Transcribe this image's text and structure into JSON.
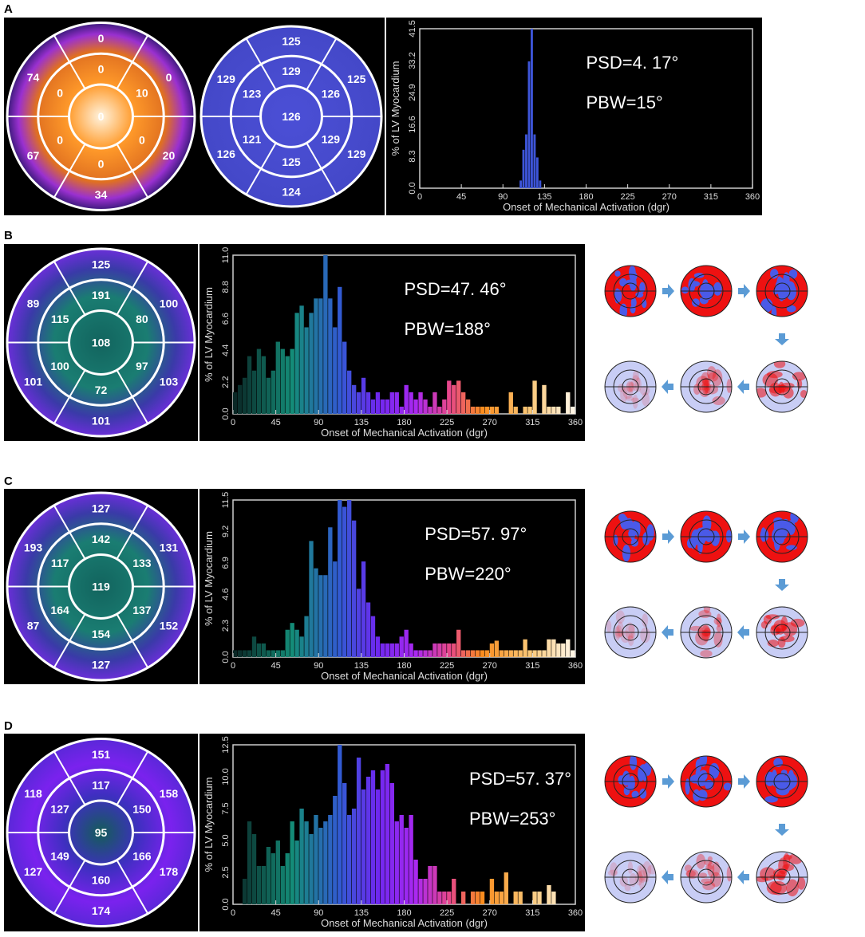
{
  "panels": [
    {
      "label": "A",
      "maps": [
        {
          "outer": [
            "0",
            "0",
            "20",
            "34",
            "67",
            "74"
          ],
          "mid": [
            "0",
            "10",
            "0",
            "0",
            "0",
            "0"
          ],
          "center": "0",
          "palette": "orange"
        },
        {
          "outer": [
            "125",
            "125",
            "129",
            "124",
            "126",
            "129"
          ],
          "mid": [
            "129",
            "126",
            "129",
            "125",
            "121",
            "123"
          ],
          "center": "126",
          "palette": "blue"
        }
      ],
      "psd": "PSD=4. 17°",
      "pbw": "PBW=15°"
    },
    {
      "label": "B",
      "maps": [
        {
          "outer": [
            "125",
            "100",
            "103",
            "101",
            "101",
            "89"
          ],
          "mid": [
            "191",
            "80",
            "97",
            "72",
            "100",
            "115"
          ],
          "center": "108",
          "palette": "teal"
        }
      ],
      "psd": "PSD=47. 46°",
      "pbw": "PBW=188°"
    },
    {
      "label": "C",
      "maps": [
        {
          "outer": [
            "127",
            "131",
            "152",
            "127",
            "87",
            "193"
          ],
          "mid": [
            "142",
            "133",
            "137",
            "154",
            "164",
            "117"
          ],
          "center": "119",
          "palette": "teal"
        }
      ],
      "psd": "PSD=57. 97°",
      "pbw": "PBW=220°"
    },
    {
      "label": "D",
      "maps": [
        {
          "outer": [
            "151",
            "158",
            "178",
            "174",
            "127",
            "118"
          ],
          "mid": [
            "117",
            "150",
            "166",
            "160",
            "149",
            "127"
          ],
          "center": "95",
          "palette": "purple"
        }
      ],
      "psd": "PSD=57. 37°",
      "pbw": "PBW=253°"
    }
  ],
  "colors": {
    "sequence_red": "#ee1111",
    "sequence_blue": "#4a5ae8",
    "arrow": "#5b9bd5"
  },
  "chart_data": [
    {
      "type": "bar",
      "panel": "A",
      "xlabel": "Onset of Mechanical Activation (dgr)",
      "ylabel": "% of LV Myocardium",
      "xlim": [
        0,
        360
      ],
      "ylim": [
        0,
        41.5
      ],
      "xticks": [
        0,
        45,
        90,
        135,
        180,
        225,
        270,
        315,
        360
      ],
      "yticks": [
        "0.0",
        "8.3",
        "16.6",
        "24.9",
        "33.2",
        "41.5"
      ],
      "bin_width": 3,
      "x": [
        108,
        111,
        114,
        117,
        120,
        123,
        126,
        129
      ],
      "values": [
        2,
        10,
        14,
        33,
        41.5,
        14,
        8,
        2
      ]
    },
    {
      "type": "bar",
      "panel": "B",
      "xlabel": "Onset of Mechanical Activation (dgr)",
      "ylabel": "% of LV Myocardium",
      "xlim": [
        0,
        360
      ],
      "ylim": [
        0,
        11.0
      ],
      "xticks": [
        0,
        45,
        90,
        135,
        180,
        225,
        270,
        315,
        360
      ],
      "yticks": [
        "0.0",
        "2.2",
        "4.4",
        "6.6",
        "8.8",
        "11.0"
      ],
      "bin_width": 5,
      "x_start": 0,
      "values": [
        1.5,
        2,
        2.5,
        4,
        3,
        4.5,
        4,
        2.5,
        3,
        5,
        4.5,
        4,
        4.5,
        7,
        7.5,
        6,
        7,
        8,
        8,
        11,
        8,
        6,
        8.8,
        5,
        3,
        2,
        1.5,
        2.5,
        1.5,
        1,
        1.5,
        1,
        1,
        1.5,
        1.5,
        0.5,
        2,
        1.5,
        1,
        1.5,
        1,
        0.5,
        1.5,
        0.5,
        1,
        2.3,
        2,
        2.3,
        1.5,
        1,
        0.5,
        0.5,
        0.5,
        0.5,
        0.5,
        0.5,
        0,
        0,
        1.5,
        0.5,
        0,
        0.5,
        0.5,
        2.3,
        0,
        2,
        0.5,
        0.5,
        0.5,
        0,
        1.5,
        0.5
      ]
    },
    {
      "type": "bar",
      "panel": "C",
      "xlabel": "Onset of Mechanical Activation (dgr)",
      "ylabel": "% of LV Myocardium",
      "xlim": [
        0,
        360
      ],
      "ylim": [
        0,
        11.5
      ],
      "xticks": [
        0,
        45,
        90,
        135,
        180,
        225,
        270,
        315,
        360
      ],
      "yticks": [
        "0.0",
        "2.3",
        "4.6",
        "6.9",
        "9.2",
        "11.5"
      ],
      "bin_width": 5,
      "x_start": 0,
      "values": [
        0.5,
        0.5,
        0.5,
        0.5,
        1.5,
        1,
        1,
        0.5,
        0.5,
        0.5,
        0.5,
        2,
        2.5,
        2,
        1.5,
        3,
        8.5,
        6.5,
        6,
        6,
        9.5,
        7,
        11.5,
        11,
        11.5,
        10,
        5,
        7,
        4,
        3,
        1.5,
        1,
        1,
        1,
        1,
        1.5,
        2,
        1,
        0.5,
        0.5,
        0.5,
        0.5,
        1,
        1,
        1,
        1,
        1,
        2,
        0.5,
        0.5,
        0.5,
        0.5,
        0.5,
        0.5,
        1,
        1.2,
        0.5,
        0.5,
        0.5,
        0.5,
        0.5,
        1.3,
        0.5,
        0.5,
        0.5,
        0.5,
        1.3,
        1.3,
        1,
        1,
        1.3,
        0.5
      ]
    },
    {
      "type": "bar",
      "panel": "D",
      "xlabel": "Onset of Mechanical Activation (dgr)",
      "ylabel": "% of LV Myocardium",
      "xlim": [
        0,
        360
      ],
      "ylim": [
        0,
        12.5
      ],
      "xticks": [
        0,
        45,
        90,
        135,
        180,
        225,
        270,
        315,
        360
      ],
      "yticks": [
        "0.0",
        "2.5",
        "5.0",
        "7.5",
        "10.0",
        "12.5"
      ],
      "bin_width": 5,
      "x_start": 0,
      "values": [
        0,
        0,
        2,
        6.5,
        5.5,
        3,
        3,
        4.5,
        4,
        5,
        3,
        4,
        6.5,
        5,
        7.5,
        6.5,
        5.5,
        7,
        6,
        6.5,
        7,
        8.5,
        12.5,
        9.5,
        7,
        7.5,
        11.5,
        9,
        10,
        10.5,
        9,
        10.5,
        11,
        9.5,
        6.5,
        7,
        6,
        7,
        3.5,
        2,
        2,
        3,
        3,
        1,
        1,
        1,
        2,
        0,
        1,
        0,
        1,
        1,
        1,
        0,
        2,
        1,
        1,
        2.5,
        0,
        1,
        1,
        0,
        0,
        1,
        1,
        0,
        1.5,
        1,
        0,
        0,
        0,
        0
      ]
    }
  ]
}
